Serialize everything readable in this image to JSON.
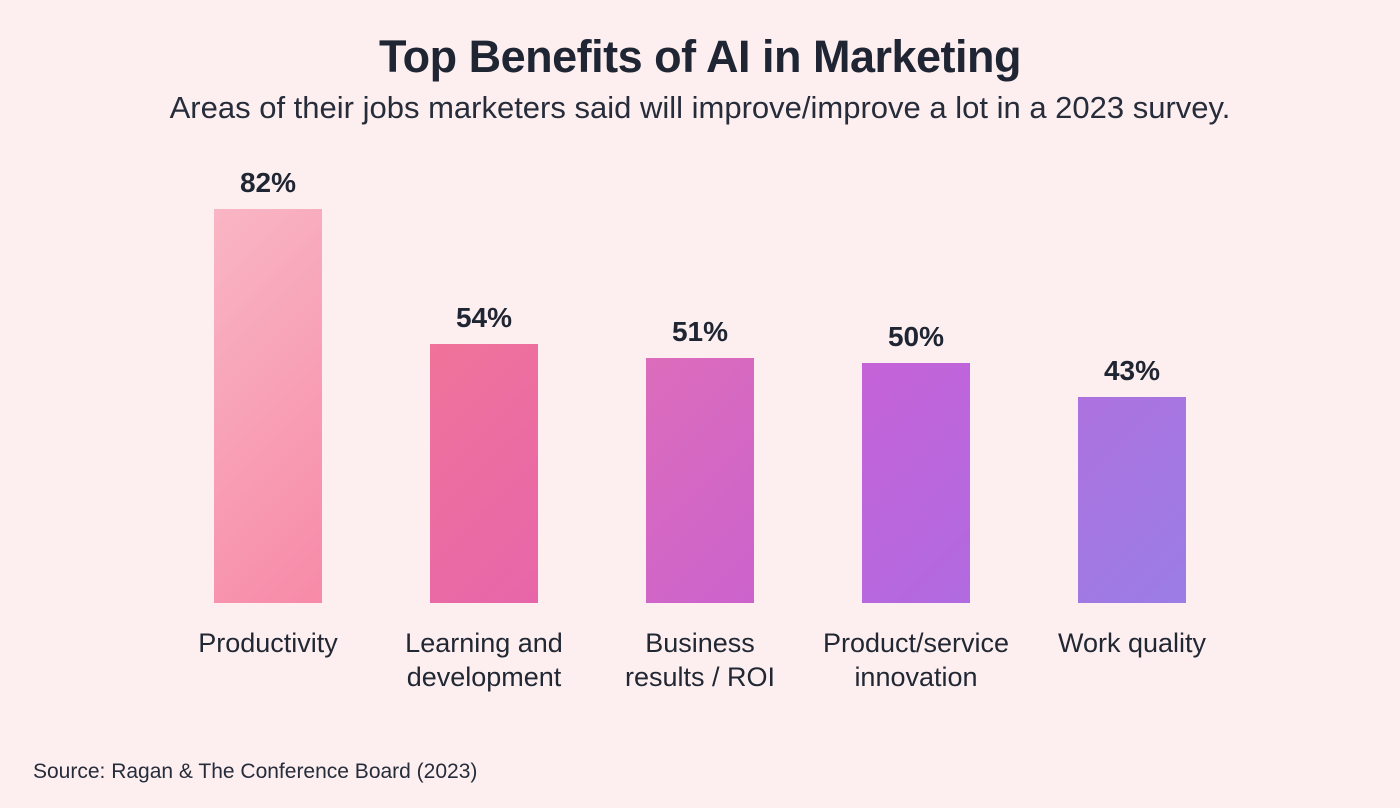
{
  "header": {
    "title": "Top Benefits of AI in Marketing",
    "subtitle": "Areas of their jobs marketers said will improve/improve a lot in a 2023 survey."
  },
  "footer": {
    "source": "Source: Ragan & The Conference Board (2023)"
  },
  "theme": {
    "background": "#fdeff0",
    "text_color": "#212733",
    "title_color": "#1f2532"
  },
  "chart_data": {
    "type": "bar",
    "title": "Top Benefits of AI in Marketing",
    "subtitle": "Areas of their jobs marketers said will improve/improve a lot in a 2023 survey.",
    "categories": [
      "Productivity",
      "Learning and development",
      "Business results / ROI",
      "Product/service innovation",
      "Work quality"
    ],
    "label_lines": [
      [
        "Productivity"
      ],
      [
        "Learning and",
        "development"
      ],
      [
        "Business",
        "results / ROI"
      ],
      [
        "Product/service",
        "innovation"
      ],
      [
        "Work quality"
      ]
    ],
    "values": [
      82,
      54,
      51,
      50,
      43
    ],
    "value_labels": [
      "82%",
      "54%",
      "51%",
      "50%",
      "43%"
    ],
    "unit": "%",
    "xlabel": "",
    "ylabel": "",
    "ylim": [
      0,
      100
    ],
    "grid": false,
    "legend": null,
    "bar_gradients": [
      {
        "from": "#f9b6c4",
        "to": "#f78aa8"
      },
      {
        "from": "#f0739a",
        "to": "#e766aa"
      },
      {
        "from": "#dc6cbb",
        "to": "#cc63cd"
      },
      {
        "from": "#c562d8",
        "to": "#b16ae0"
      },
      {
        "from": "#ad72df",
        "to": "#9b7de5"
      }
    ],
    "source": "Source: Ragan & The Conference Board (2023)"
  }
}
